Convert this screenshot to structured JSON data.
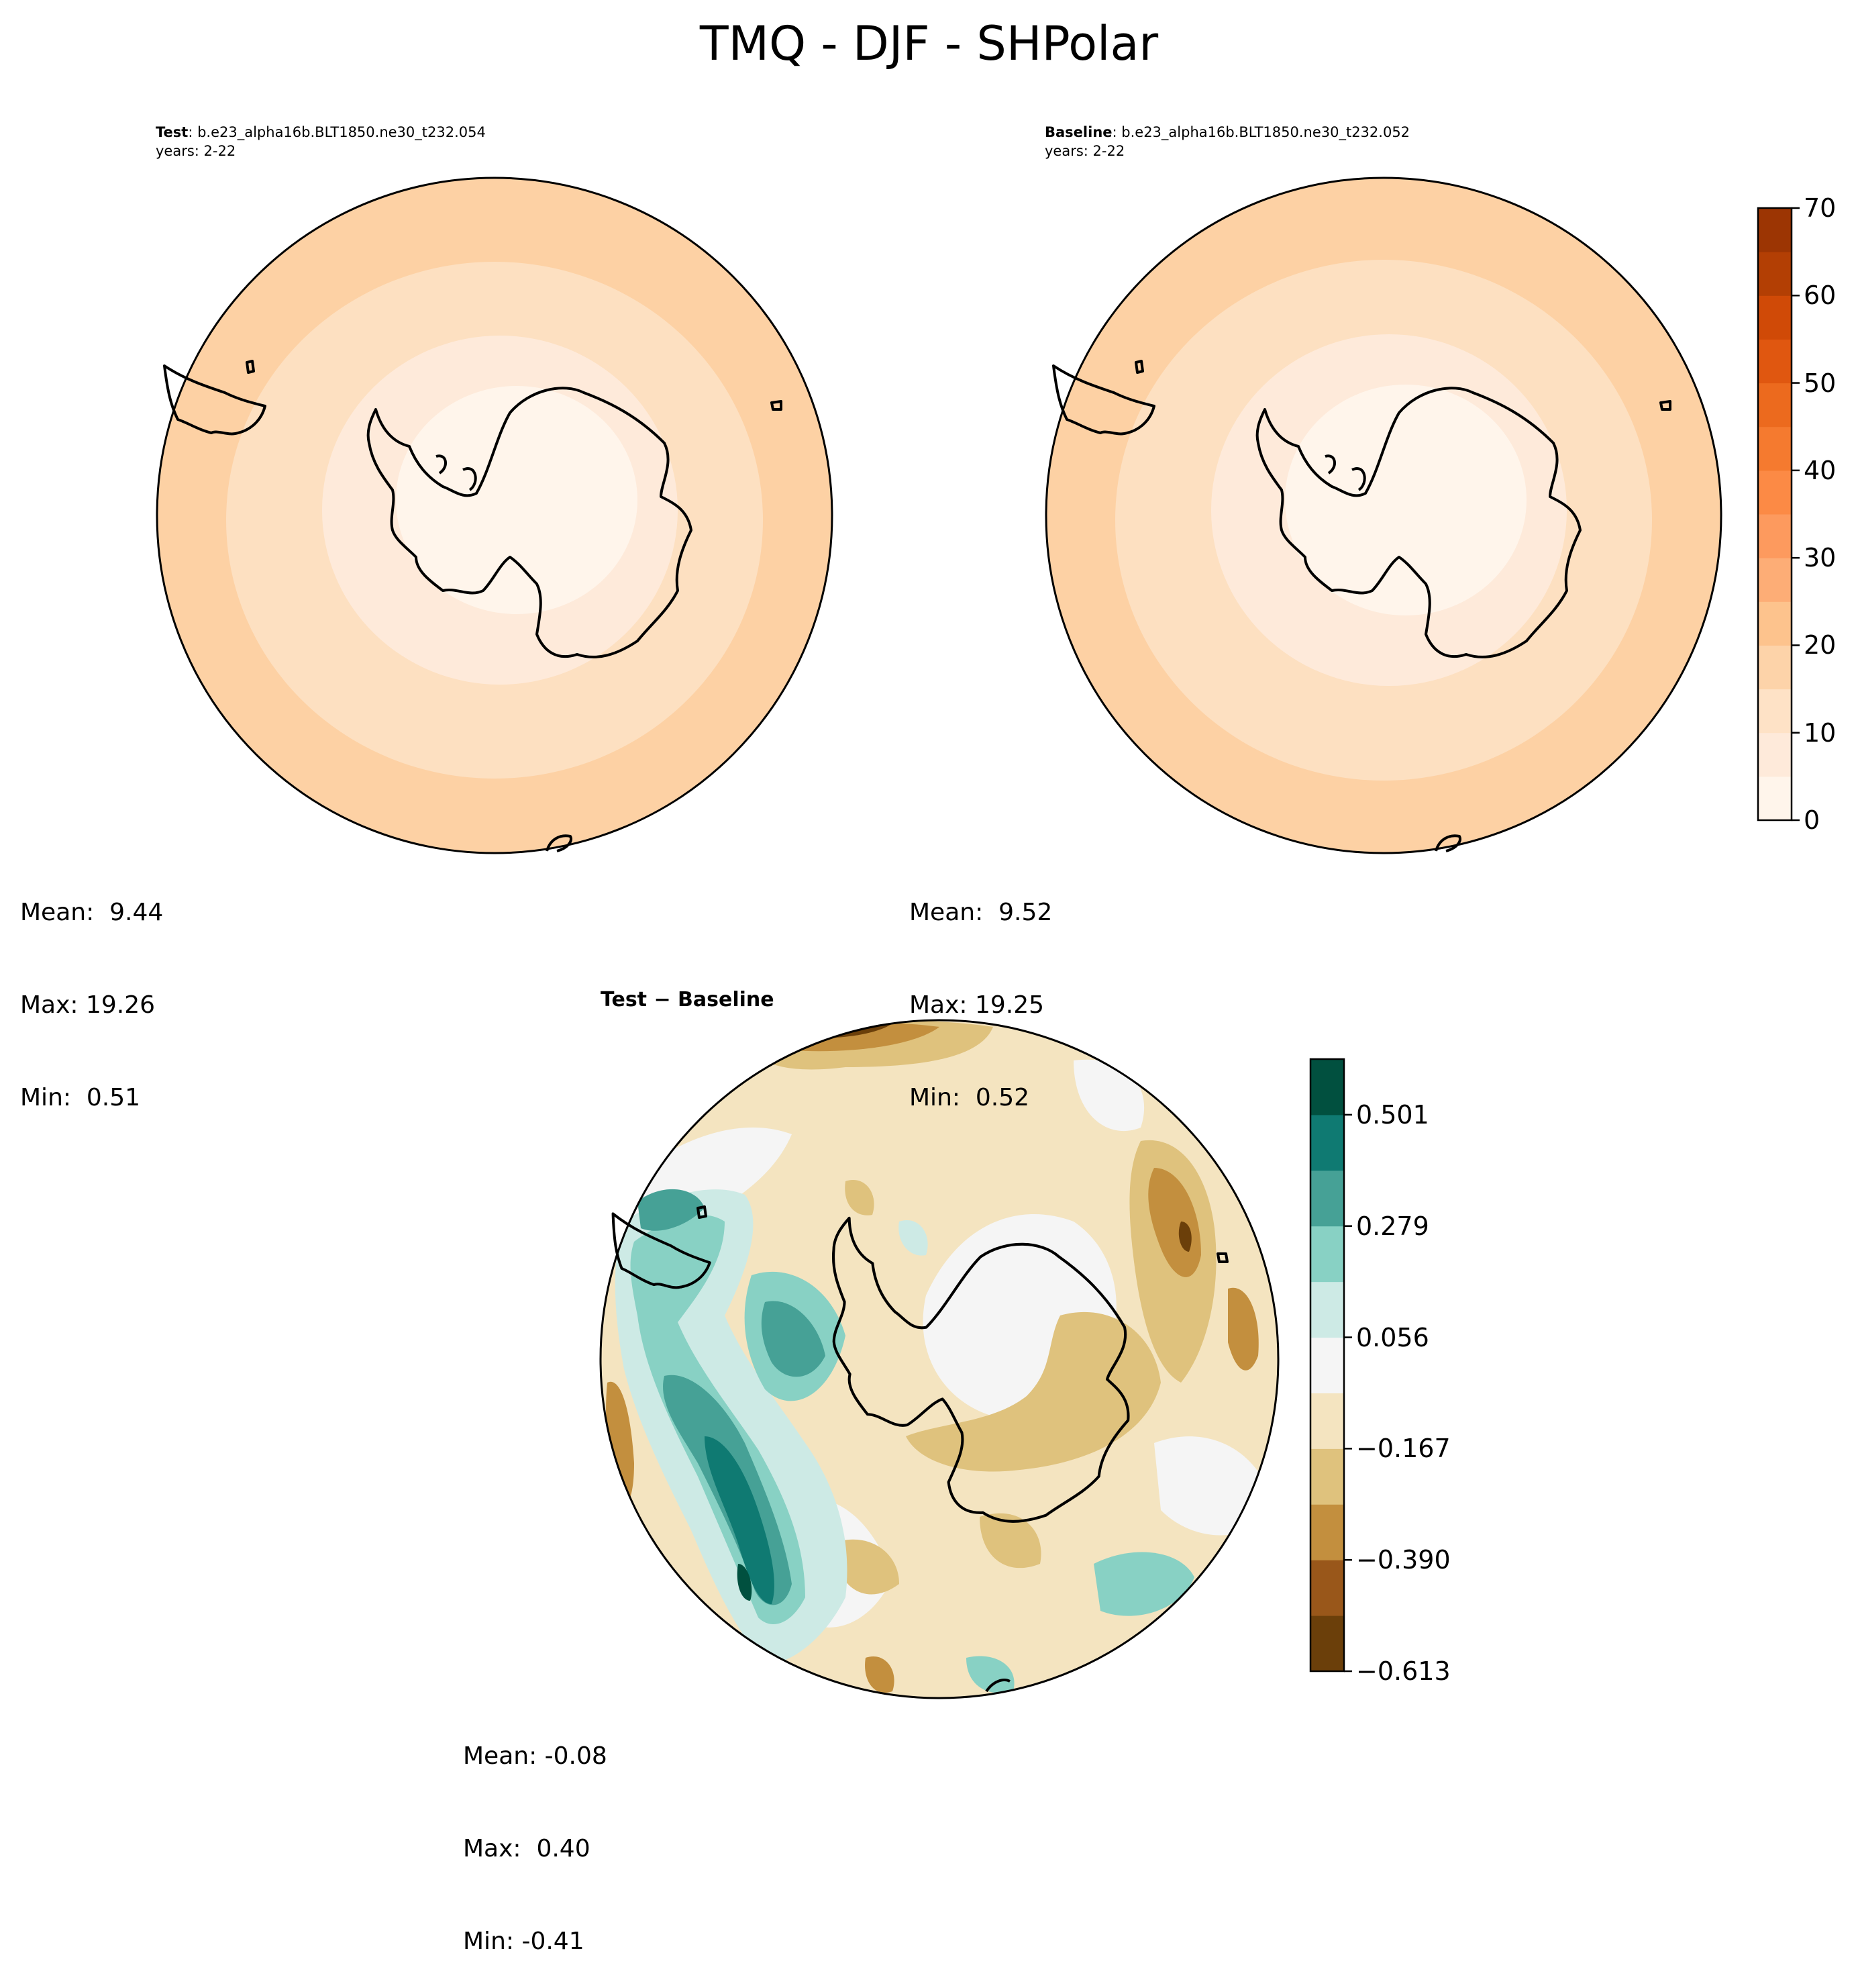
{
  "figure": {
    "title": "TMQ - DJF - SHPolar"
  },
  "panels": {
    "test": {
      "label": "Test",
      "case": ": b.e23_alpha16b.BLT1850.ne30_t232.054",
      "years": "years: 2-22",
      "stats": {
        "mean": "Mean:  9.44",
        "max": "Max: 19.26",
        "min": "Min:  0.51"
      },
      "colors": [
        "#fdd1a4",
        "#fde0c1",
        "#feeada",
        "#fff5eb"
      ]
    },
    "baseline": {
      "label": "Baseline",
      "case": ": b.e23_alpha16b.BLT1850.ne30_t232.052",
      "years": "years: 2-22",
      "stats": {
        "mean": "Mean:  9.52",
        "max": "Max: 19.25",
        "min": "Min:  0.52"
      },
      "colors": [
        "#fdd1a4",
        "#fde0c1",
        "#feeada",
        "#fff5eb"
      ]
    },
    "difference": {
      "title": "Test − Baseline",
      "stats": {
        "mean": "Mean: -0.08",
        "max": "Max:  0.40",
        "min": "Min: -0.41"
      }
    }
  },
  "chart_data": [
    {
      "type": "heatmap",
      "name": "colorbar-main",
      "colormap": "Oranges",
      "range": [
        0,
        70
      ],
      "ticks": [
        "0",
        "10",
        "20",
        "30",
        "40",
        "50",
        "60",
        "70"
      ],
      "colors": [
        "#fff5eb",
        "#feeada",
        "#fee2c6",
        "#fdd3a9",
        "#fdc38d",
        "#fdad76",
        "#fd9a5e",
        "#fc8a45",
        "#f57a2f",
        "#ec6a1e",
        "#e05710",
        "#d04a07",
        "#b33f04",
        "#9c3503"
      ]
    },
    {
      "type": "heatmap",
      "name": "colorbar-diff",
      "colormap": "BrBG",
      "range": [
        -0.613,
        0.612
      ],
      "ticks": [
        "−0.613",
        "−0.390",
        "−0.167",
        "0.056",
        "0.279",
        "0.501"
      ],
      "colors": [
        "#6b3f0a",
        "#99571a",
        "#c38f3e",
        "#dfc27d",
        "#f4e4c0",
        "#f5f5f5",
        "#cdeae5",
        "#88d1c4",
        "#46a196",
        "#0f7a72",
        "#01503f"
      ]
    }
  ]
}
